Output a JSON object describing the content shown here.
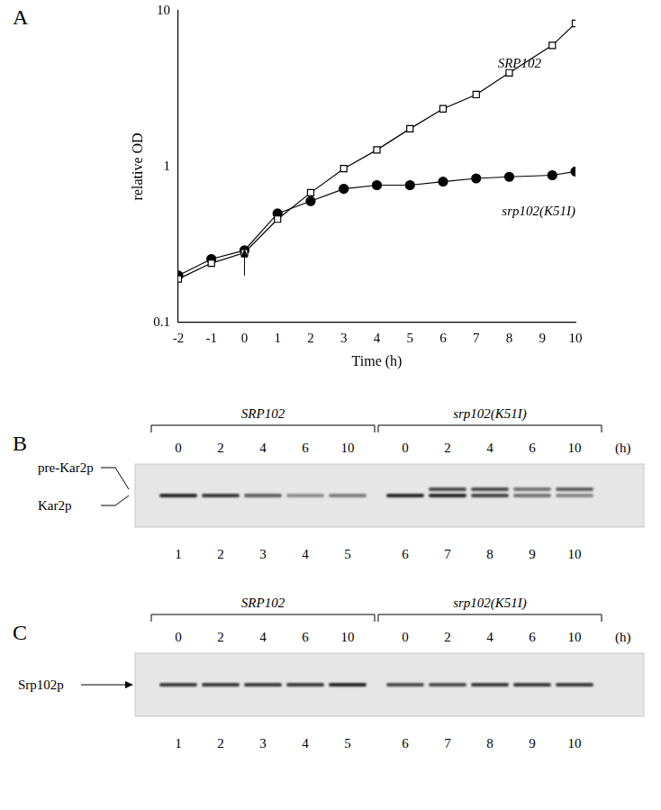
{
  "chart_data": {
    "panel": "A",
    "type": "line",
    "x_label": "Time (h)",
    "y_label": "relative OD",
    "log": "y",
    "grid": false,
    "xlim": [
      -2,
      10
    ],
    "xticks": [
      -2,
      -1,
      0,
      1,
      2,
      3,
      4,
      5,
      6,
      7,
      8,
      9,
      10
    ],
    "ylim": [
      0.1,
      10
    ],
    "yticks": [
      0.1,
      1,
      10
    ],
    "arrow_at": 0,
    "x": [
      -2,
      -1,
      0,
      1,
      2,
      3,
      4,
      5,
      6,
      7,
      8,
      9.3,
      10
    ],
    "series": [
      {
        "name": "SRP102",
        "color": "#000000",
        "marker": "open_square",
        "values": [
          0.19,
          0.24,
          0.28,
          0.46,
          0.68,
          0.97,
          1.28,
          1.75,
          2.35,
          2.9,
          4.0,
          6.0,
          8.3
        ]
      },
      {
        "name": "srp102(K51I)",
        "color": "#000000",
        "marker": "filled_circle",
        "values": [
          0.2,
          0.255,
          0.29,
          0.5,
          0.6,
          0.72,
          0.76,
          0.76,
          0.8,
          0.84,
          0.86,
          0.88,
          0.93
        ]
      }
    ]
  },
  "gels": [
    {
      "panel": "B",
      "unit": "(h)",
      "label_style": "bracket",
      "groups": [
        {
          "name": "SRP102",
          "times": [
            0,
            2,
            4,
            6,
            10
          ]
        },
        {
          "name": "srp102(K51I)",
          "times": [
            0,
            2,
            4,
            6,
            10
          ]
        }
      ],
      "lanes": [
        1,
        2,
        3,
        4,
        5,
        6,
        7,
        8,
        9,
        10
      ],
      "bands": [
        {
          "name": "pre-Kar2p",
          "intensity": [
            null,
            null,
            null,
            null,
            null,
            null,
            0.8,
            0.8,
            0.6,
            0.7
          ]
        },
        {
          "name": "Kar2p",
          "intensity": [
            1,
            0.9,
            0.7,
            0.45,
            0.55,
            1,
            1,
            0.85,
            0.6,
            0.5
          ]
        }
      ]
    },
    {
      "panel": "C",
      "unit": "(h)",
      "label_style": "arrow",
      "groups": [
        {
          "name": "SRP102",
          "times": [
            0,
            2,
            4,
            6,
            10
          ]
        },
        {
          "name": "srp102(K51I)",
          "times": [
            0,
            2,
            4,
            6,
            10
          ]
        }
      ],
      "lanes": [
        1,
        2,
        3,
        4,
        5,
        6,
        7,
        8,
        9,
        10
      ],
      "bands": [
        {
          "name": "Srp102p",
          "intensity": [
            0.9,
            0.9,
            0.9,
            0.9,
            1,
            0.8,
            0.8,
            0.9,
            0.9,
            0.9
          ]
        }
      ]
    }
  ]
}
